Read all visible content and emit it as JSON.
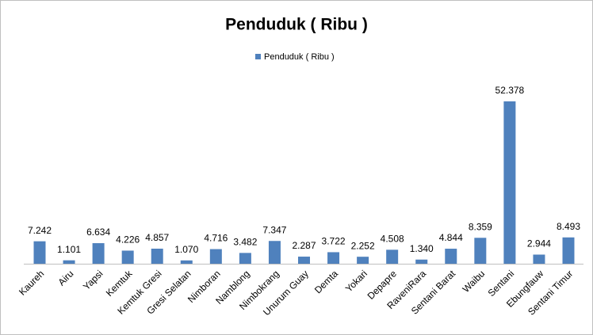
{
  "chart_data": {
    "type": "bar",
    "title": "Penduduk ( Ribu )",
    "categories": [
      "Kaureh",
      "Airu",
      "Yapsi",
      "Kemtuk",
      "Kemtuk Gresi",
      "Gresi Selatan",
      "Nimboran",
      "Namblong",
      "Nimbokrang",
      "Unurum Guay",
      "Demta",
      "Yokari",
      "Depapre",
      "RaveniRara",
      "Sentani Barat",
      "Waibu",
      "Sentani",
      "Ebungfauw",
      "Sentani Timur"
    ],
    "series": [
      {
        "name": "Penduduk ( Ribu )",
        "color": "#4f81bd",
        "values": [
          7.242,
          1.101,
          6.634,
          4.226,
          4.857,
          1.07,
          4.716,
          3.482,
          7.347,
          2.287,
          3.722,
          2.252,
          4.508,
          1.34,
          4.844,
          8.359,
          52.378,
          2.944,
          8.493
        ],
        "value_labels": [
          "7.242",
          "1.101",
          "6.634",
          "4.226",
          "4.857",
          "1.070",
          "4.716",
          "3.482",
          "7.347",
          "2.287",
          "3.722",
          "2.252",
          "4.508",
          "1.340",
          "4.844",
          "8.359",
          "52.378",
          "2.944",
          "8.493"
        ]
      }
    ],
    "legend": "top"
  }
}
